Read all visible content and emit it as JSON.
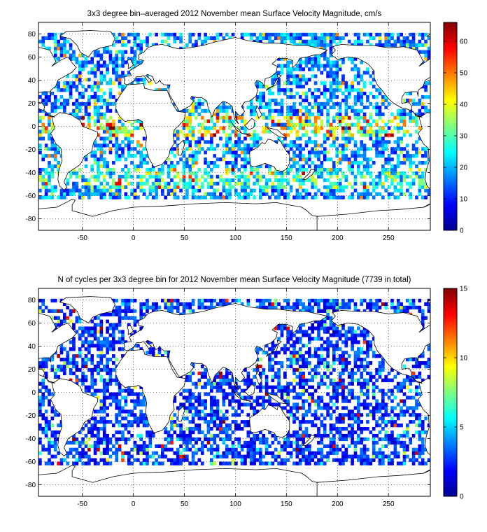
{
  "figure": {
    "panels": [
      {
        "title": "3x3 degree bin–averaged 2012 November mean Surface Velocity Magnitude, cm/s",
        "colorbar_ticks": [
          "0",
          "10",
          "20",
          "30",
          "40",
          "50",
          "60"
        ],
        "colorbar_range": [
          0,
          66
        ]
      },
      {
        "title": "N of cycles per 3x3 degree bin for 2012 November mean Surface Velocity Magnitude (7739 in total)",
        "colorbar_ticks": [
          "0",
          "5",
          "10",
          "15"
        ],
        "colorbar_range": [
          0,
          15
        ]
      }
    ],
    "x_ticks": [
      "-50",
      "0",
      "50",
      "100",
      "150",
      "200",
      "250"
    ],
    "y_ticks": [
      "80",
      "60",
      "40",
      "20",
      "0",
      "-20",
      "-40",
      "-60",
      "-80"
    ]
  },
  "chart_data": [
    {
      "type": "heatmap",
      "title": "3x3 degree bin–averaged 2012 November mean Surface Velocity Magnitude, cm/s",
      "variable": "surface velocity magnitude",
      "unit": "cm/s",
      "bin_size_deg": 3,
      "xlim": [
        -93,
        291
      ],
      "ylim": [
        -90,
        90
      ],
      "colorbar_range": [
        0,
        66
      ],
      "colormap": "jet",
      "grid": true,
      "values_note": "",
      "sample_bins": [
        {
          "lon": 84,
          "lat": 0,
          "value": 60
        },
        {
          "lon": 48,
          "lat": 0,
          "value": 58
        },
        {
          "lon": 210,
          "lat": 6,
          "value": 62
        },
        {
          "lon": -39,
          "lat": 39,
          "value": 60
        },
        {
          "lon": 30,
          "lat": -39,
          "value": 60
        },
        {
          "lon": 150,
          "lat": -57,
          "value": 50
        },
        {
          "lon": 150,
          "lat": 30,
          "value": 25
        },
        {
          "lon": 240,
          "lat": -30,
          "value": 12
        }
      ]
    },
    {
      "type": "heatmap",
      "title": "N of cycles per 3x3 degree bin for 2012 November mean Surface Velocity Magnitude (7739 in total)",
      "variable": "number of cycles",
      "total": 7739,
      "bin_size_deg": 3,
      "xlim": [
        -93,
        291
      ],
      "ylim": [
        -90,
        90
      ],
      "colorbar_range": [
        0,
        15
      ],
      "colormap": "jet",
      "grid": true,
      "sample_bins": [
        {
          "lon": 120,
          "lat": 21,
          "value": 15
        },
        {
          "lon": 30,
          "lat": 21,
          "value": 14
        },
        {
          "lon": 132,
          "lat": 39,
          "value": 13
        },
        {
          "lon": -78,
          "lat": 27,
          "value": 12
        },
        {
          "lon": 180,
          "lat": 0,
          "value": 2
        },
        {
          "lon": 60,
          "lat": -45,
          "value": 1
        }
      ]
    }
  ]
}
